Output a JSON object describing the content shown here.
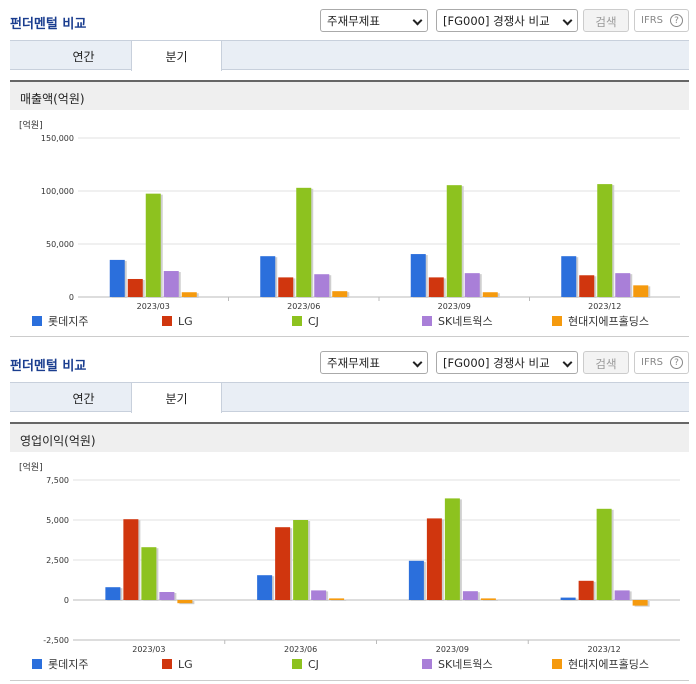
{
  "sections": [
    {
      "title": "펀더멘털 비교",
      "select1": "주재무제표",
      "select2": "[FG000] 경쟁사 비교",
      "search_label": "검색",
      "ifrs_label": "IFRS",
      "help_glyph": "?",
      "tabs": [
        {
          "label": "연간",
          "active": false
        },
        {
          "label": "분기",
          "active": true
        }
      ],
      "chart_title": "매출액(억원)"
    },
    {
      "title": "펀더멘털 비교",
      "select1": "주재무제표",
      "select2": "[FG000] 경쟁사 비교",
      "search_label": "검색",
      "ifrs_label": "IFRS",
      "help_glyph": "?",
      "tabs": [
        {
          "label": "연간",
          "active": false
        },
        {
          "label": "분기",
          "active": true
        }
      ],
      "chart_title": "영업이익(억원)"
    }
  ],
  "colors": {
    "롯데지주": "#2b6fdc",
    "LG": "#d0360e",
    "CJ": "#8dc21f",
    "SK네트웍스": "#a97fd8",
    "현대지에프홀딩스": "#f59a0e"
  },
  "chart_data": [
    {
      "type": "bar",
      "unit_label": "[억원]",
      "categories": [
        "2023/03",
        "2023/06",
        "2023/09",
        "2023/12"
      ],
      "ylim": [
        0,
        150000
      ],
      "yticks": [
        0,
        50000,
        100000,
        150000
      ],
      "ytick_labels": [
        "0",
        "50,000",
        "100,000",
        "150,000"
      ],
      "grid": true,
      "legend_position": "bottom",
      "series": [
        {
          "name": "롯데지주",
          "values": [
            35000,
            38500,
            40500,
            38500
          ]
        },
        {
          "name": "LG",
          "values": [
            17000,
            18500,
            18500,
            20500
          ]
        },
        {
          "name": "CJ",
          "values": [
            97500,
            103000,
            105500,
            106500
          ]
        },
        {
          "name": "SK네트웍스",
          "values": [
            24500,
            21500,
            22500,
            22500
          ]
        },
        {
          "name": "현대지에프홀딩스",
          "values": [
            4500,
            5500,
            4500,
            11000
          ]
        }
      ]
    },
    {
      "type": "bar",
      "unit_label": "[억원]",
      "categories": [
        "2023/03",
        "2023/06",
        "2023/09",
        "2023/12"
      ],
      "ylim": [
        -2500,
        7500
      ],
      "yticks": [
        -2500,
        0,
        2500,
        5000,
        7500
      ],
      "ytick_labels": [
        "-2,500",
        "0",
        "2,500",
        "5,000",
        "7,500"
      ],
      "grid": true,
      "legend_position": "bottom",
      "series": [
        {
          "name": "롯데지주",
          "values": [
            800,
            1550,
            2450,
            150
          ]
        },
        {
          "name": "LG",
          "values": [
            5050,
            4550,
            5100,
            1200
          ]
        },
        {
          "name": "CJ",
          "values": [
            3300,
            5000,
            6350,
            5700
          ]
        },
        {
          "name": "SK네트웍스",
          "values": [
            500,
            600,
            550,
            600
          ]
        },
        {
          "name": "현대지에프홀딩스",
          "values": [
            -200,
            100,
            100,
            -350
          ]
        }
      ]
    }
  ]
}
